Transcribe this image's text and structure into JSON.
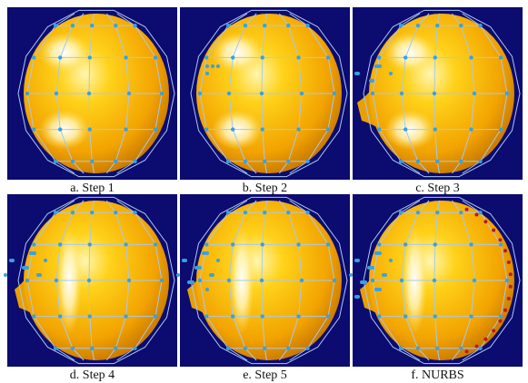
{
  "panels": [
    {
      "caption": "a. Step 1"
    },
    {
      "caption": "b. Step 2"
    },
    {
      "caption": "c. Step 3"
    },
    {
      "caption": "d. Step 4"
    },
    {
      "caption": "e. Step 5"
    },
    {
      "caption": "f. NURBS"
    }
  ]
}
